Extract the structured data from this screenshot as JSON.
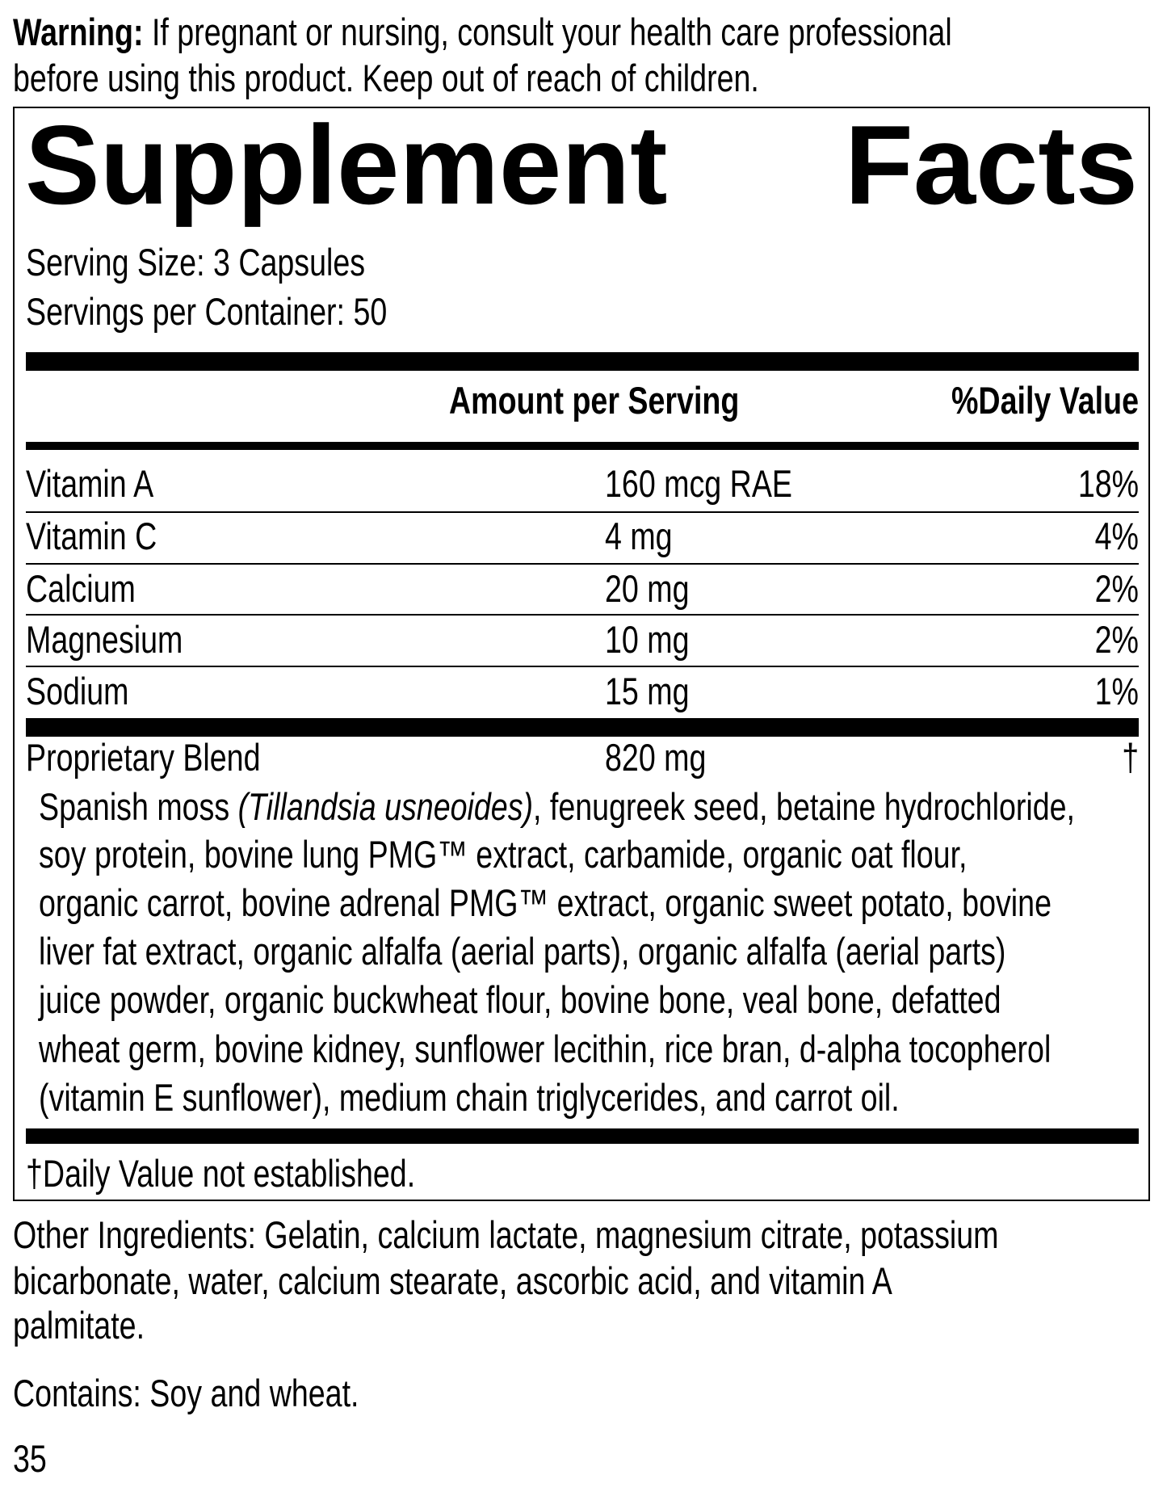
{
  "warning": {
    "label": "Warning:",
    "line1": " If pregnant or nursing, consult your health care professional",
    "line2": "before using this product. Keep out of reach of children."
  },
  "facts": {
    "title_word1": "Supplement",
    "title_word2": "Facts",
    "serving_size": "Serving Size: 3 Capsules",
    "servings_per_container": "Servings per Container: 50",
    "header_amount": "Amount per Serving",
    "header_dv": "%Daily Value",
    "nutrients": [
      {
        "name": "Vitamin A",
        "amount": "160 mcg RAE",
        "dv": "18%"
      },
      {
        "name": "Vitamin C",
        "amount": "4 mg",
        "dv": "4%"
      },
      {
        "name": "Calcium",
        "amount": "20 mg",
        "dv": "2%"
      },
      {
        "name": "Magnesium",
        "amount": "10 mg",
        "dv": "2%"
      },
      {
        "name": "Sodium",
        "amount": "15 mg",
        "dv": "1%"
      }
    ],
    "blend": {
      "name": "Proprietary Blend",
      "amount": "820 mg",
      "dv": "†",
      "line1_a": "Spanish moss ",
      "line1_italic": "(Tillandsia usneoides)",
      "line1_b": ", fenugreek seed, betaine hydrochloride,",
      "lines": [
        "soy protein, bovine lung PMG™ extract, carbamide, organic oat flour,",
        "organic carrot, bovine adrenal PMG™ extract, organic sweet potato, bovine",
        "liver fat extract, organic alfalfa (aerial parts), organic alfalfa (aerial parts)",
        "juice powder, organic buckwheat flour, bovine bone, veal bone, defatted",
        "wheat germ, bovine kidney, sunflower lecithin, rice bran, d-alpha tocopherol",
        "(vitamin E sunflower), medium chain triglycerides, and carrot oil."
      ]
    },
    "footnote": "†Daily Value not established."
  },
  "other_ingredients": [
    "Other Ingredients: Gelatin, calcium lactate, magnesium citrate, potassium",
    "bicarbonate, water, calcium stearate, ascorbic acid, and vitamin A",
    "palmitate."
  ],
  "contains": "Contains: Soy and wheat.",
  "code": "35"
}
